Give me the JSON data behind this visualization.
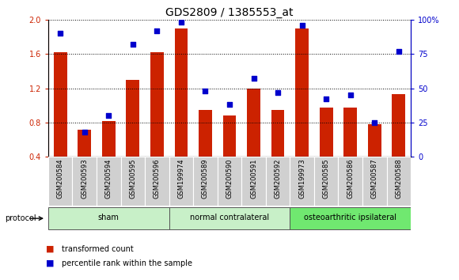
{
  "title": "GDS2809 / 1385553_at",
  "categories": [
    "GSM200584",
    "GSM200593",
    "GSM200594",
    "GSM200595",
    "GSM200596",
    "GSM199974",
    "GSM200589",
    "GSM200590",
    "GSM200591",
    "GSM200592",
    "GSM199973",
    "GSM200585",
    "GSM200586",
    "GSM200587",
    "GSM200588"
  ],
  "red_values": [
    1.62,
    0.72,
    0.82,
    1.3,
    1.62,
    1.9,
    0.95,
    0.88,
    1.2,
    0.95,
    1.9,
    0.97,
    0.97,
    0.78,
    1.13
  ],
  "blue_values": [
    90,
    18,
    30,
    82,
    92,
    98,
    48,
    38,
    57,
    47,
    96,
    42,
    45,
    25,
    77
  ],
  "groups": [
    {
      "label": "sham",
      "start": 0,
      "end": 4,
      "color": "#c8f0c8"
    },
    {
      "label": "normal contralateral",
      "start": 5,
      "end": 9,
      "color": "#c8f0c8"
    },
    {
      "label": "osteoarthritic ipsilateral",
      "start": 10,
      "end": 14,
      "color": "#70e870"
    }
  ],
  "ylim_left": [
    0.4,
    2.0
  ],
  "ylim_right": [
    0,
    100
  ],
  "yticks_left": [
    0.4,
    0.8,
    1.2,
    1.6,
    2.0
  ],
  "yticks_right": [
    0,
    25,
    50,
    75,
    100
  ],
  "bar_color": "#cc2200",
  "dot_color": "#0000cc",
  "tick_color_left": "#cc2200",
  "tick_color_right": "#0000cc",
  "legend_items": [
    "transformed count",
    "percentile rank within the sample"
  ],
  "protocol_label": "protocol",
  "title_fontsize": 10,
  "tick_fontsize": 7,
  "label_fontsize": 6,
  "group_fontsize": 7,
  "legend_fontsize": 7
}
